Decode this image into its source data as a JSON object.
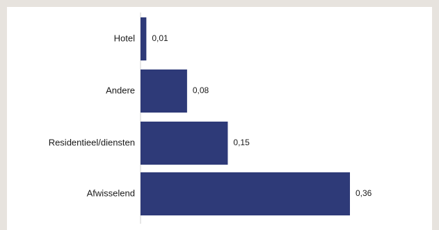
{
  "colors": {
    "background": "#e7e3de",
    "panel": "#ffffff",
    "bar": "#2e3a78",
    "axis": "#cfcfcf"
  },
  "chart_data": {
    "type": "bar",
    "orientation": "horizontal",
    "title": "",
    "xlabel": "",
    "ylabel": "",
    "categories": [
      "Hotel",
      "Andere",
      "Residentieel/diensten",
      "Afwisselend"
    ],
    "values": [
      0.01,
      0.08,
      0.15,
      0.36
    ],
    "value_labels": [
      "0,01",
      "0,08",
      "0,15",
      "0,36"
    ],
    "xlim": [
      0,
      0.36
    ],
    "grid": false,
    "legend": "none"
  }
}
